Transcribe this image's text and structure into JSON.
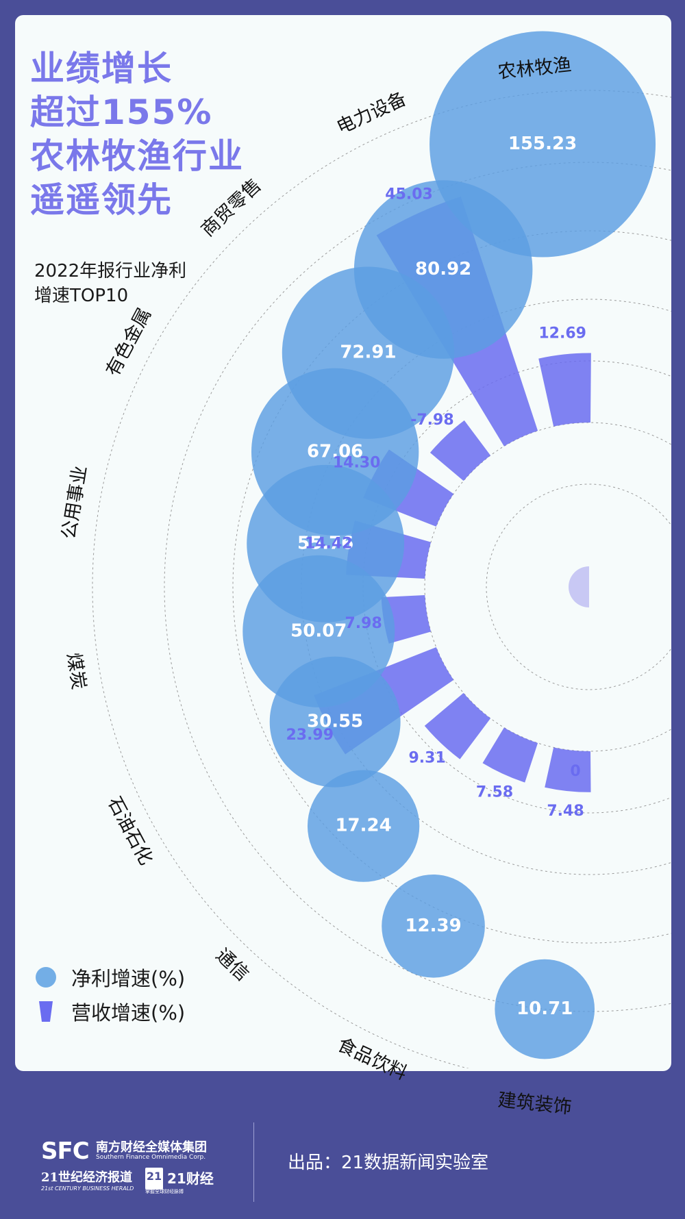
{
  "headline": [
    "业绩增长",
    "超过155%",
    "农林牧渔行业",
    "遥遥领先"
  ],
  "subtitle": [
    "2022年报行业净利",
    "增速TOP10"
  ],
  "legend": {
    "profit": "净利增速(%)",
    "revenue": "营收增速(%)"
  },
  "colors": {
    "profit_bubble": "#5b9de2",
    "revenue_bar": "#6a6cf0",
    "headline": "#7a78ea",
    "background": "#4a4e98"
  },
  "chart_data": {
    "type": "polar-bar-bubble",
    "categories": [
      "农林牧渔",
      "电力设备",
      "商贸零售",
      "有色金属",
      "公用事业",
      "煤炭",
      "石油石化",
      "通信",
      "食品饮料",
      "建筑装饰"
    ],
    "series": [
      {
        "name": "净利增速(%)",
        "values": [
          155.23,
          80.92,
          72.91,
          67.06,
          55.76,
          50.07,
          30.55,
          17.24,
          12.39,
          10.71
        ]
      },
      {
        "name": "营收增速(%)",
        "values": [
          12.69,
          45.03,
          -7.98,
          14.3,
          14.42,
          7.98,
          23.99,
          9.31,
          7.58,
          7.48
        ]
      }
    ],
    "extra_value_label": "0"
  },
  "footer": {
    "sfc_logo": "SFC",
    "group_cn": "南方财经全媒体集团",
    "group_en": "Southern Finance Omnimedia Corp.",
    "herald_cn": "21世纪经济报道",
    "herald_en": "21st CENTURY BUSINESS HERALD",
    "badge": "21",
    "caijing": "21财经",
    "caijing_sub": "掌握全球财经脉搏",
    "credit": "出品：21数据新闻实验室"
  }
}
